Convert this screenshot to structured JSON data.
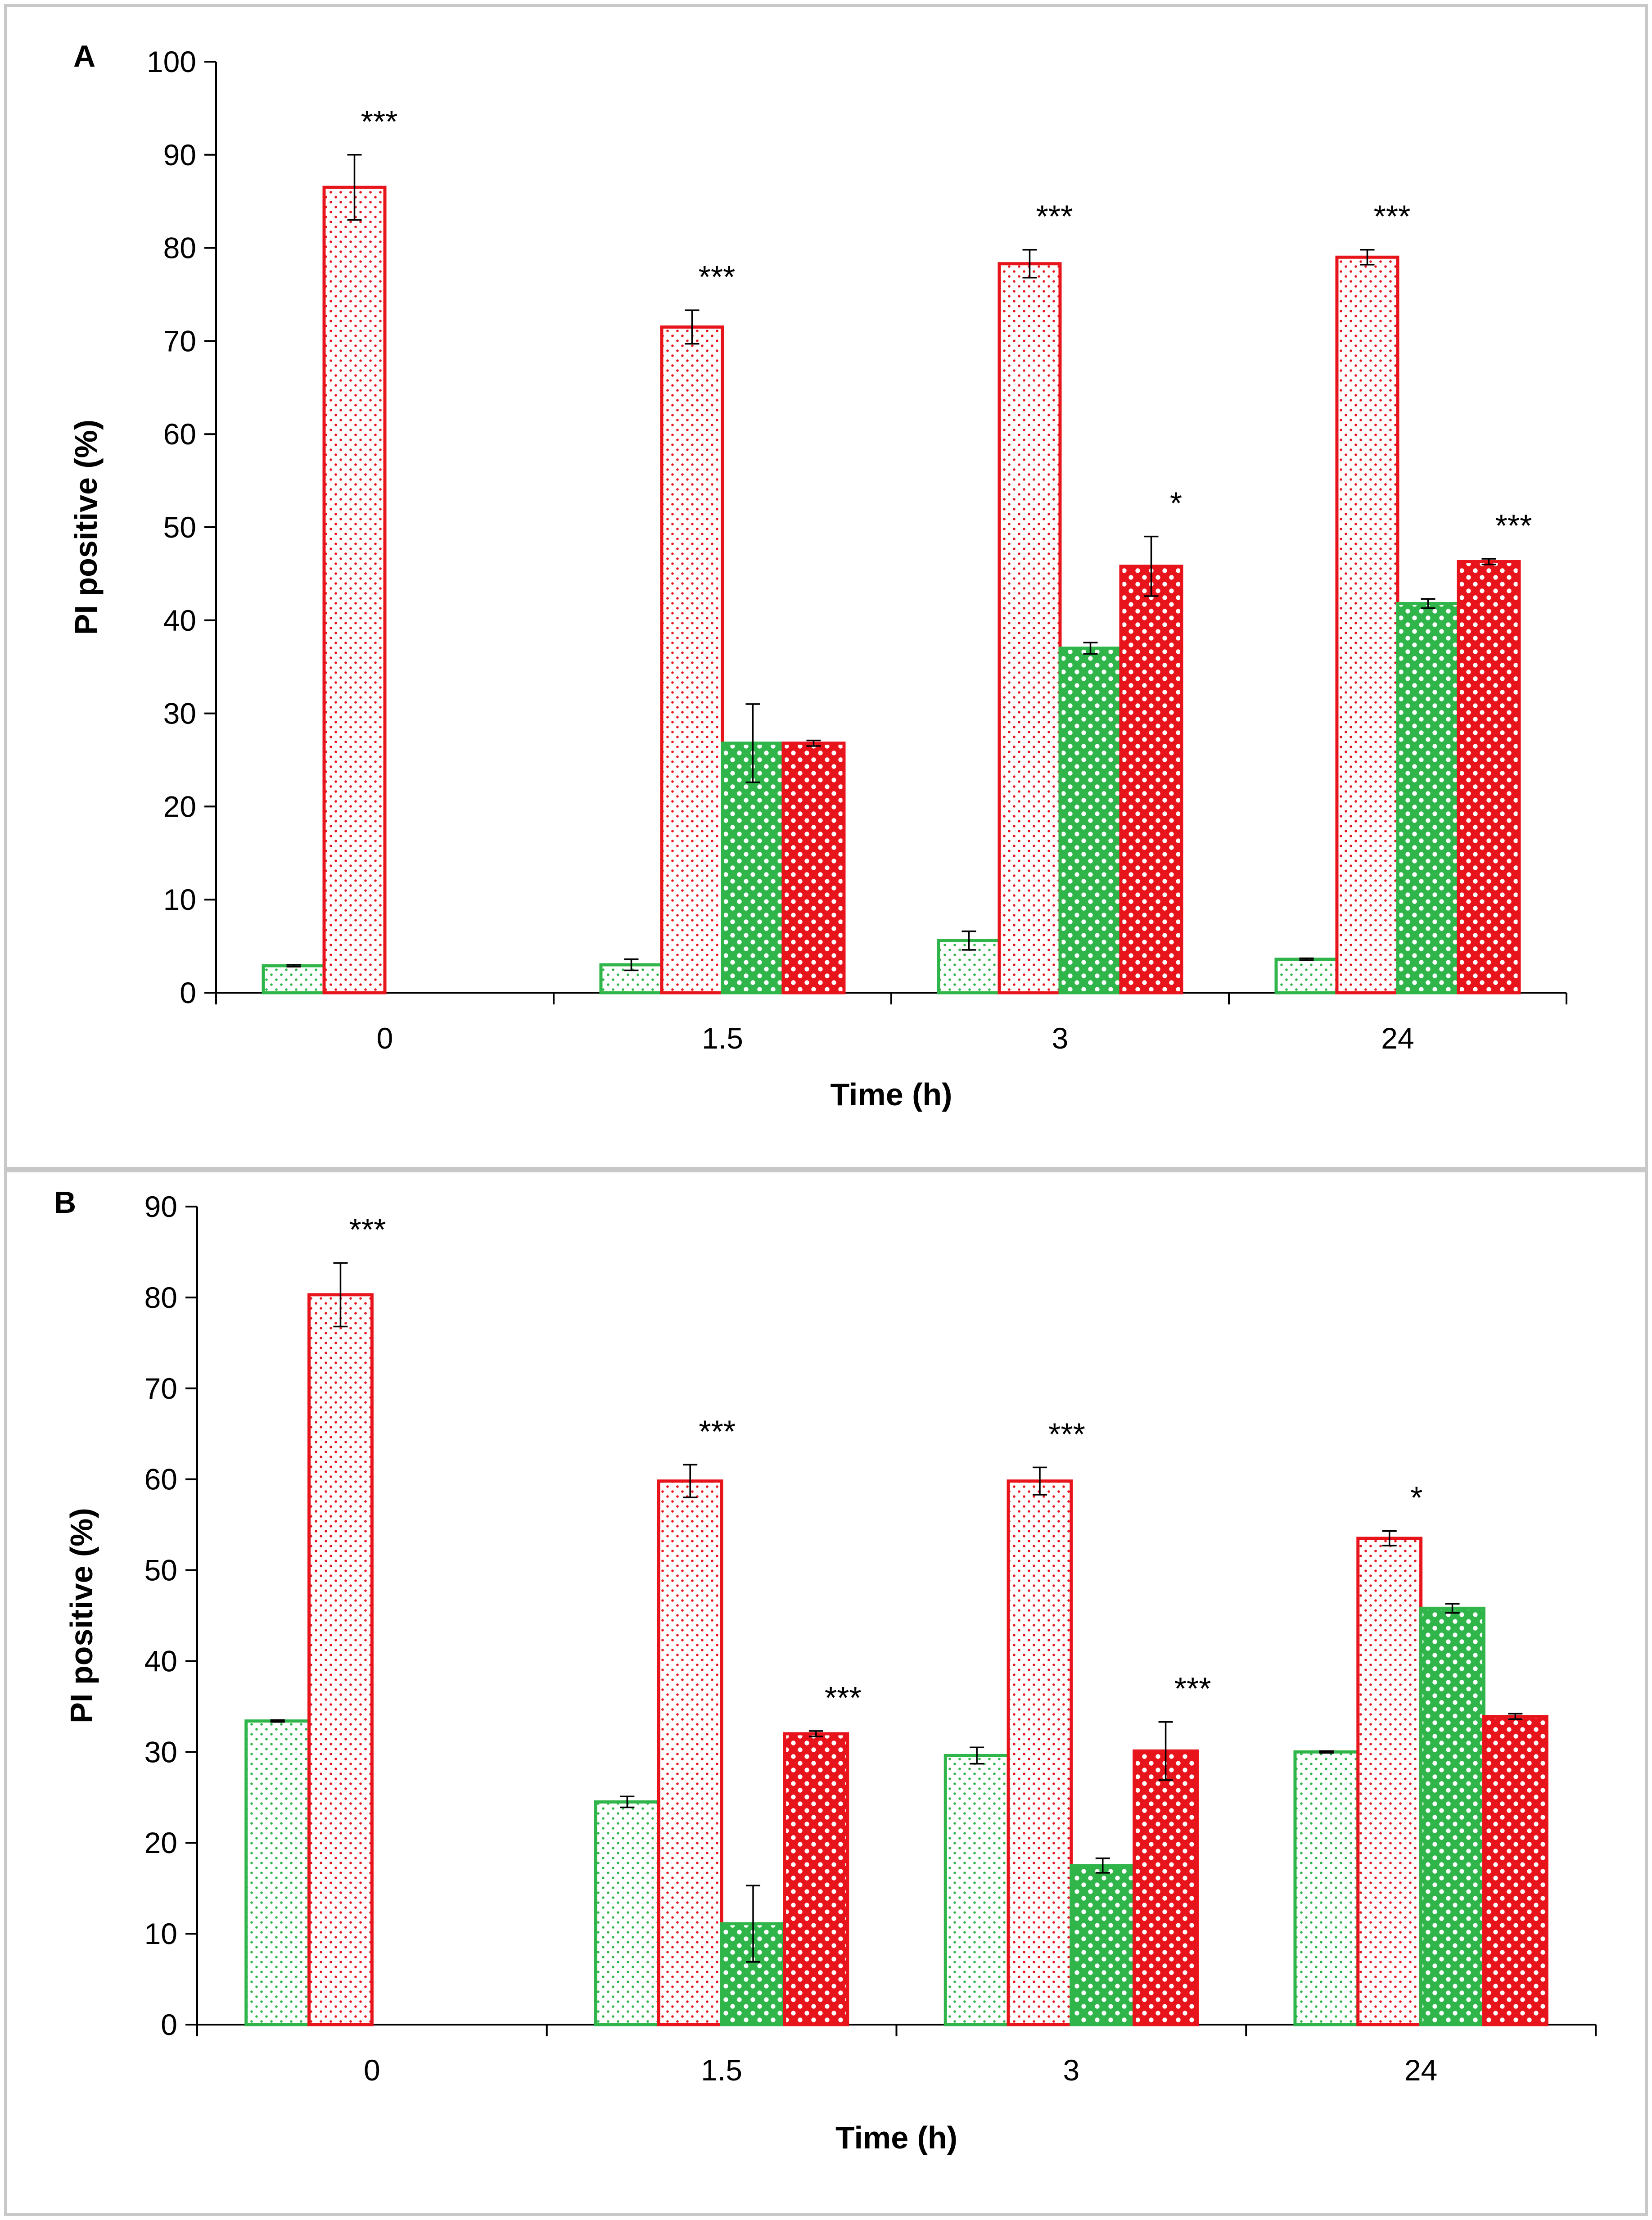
{
  "chart_data": [
    {
      "type": "bar",
      "panel_label": "A",
      "title": "",
      "xlabel": "Time (h)",
      "ylabel": "PI positive (%)",
      "ylim": [
        0,
        100
      ],
      "yticks": [
        0,
        10,
        20,
        30,
        40,
        50,
        60,
        70,
        80,
        90,
        100
      ],
      "categories": [
        "0",
        "1.5",
        "3",
        "24"
      ],
      "legend": "none",
      "grid": false,
      "series": [
        {
          "color": "#2fb54a",
          "pattern": "dots",
          "values": [
            2.9,
            3.0,
            5.6,
            3.6
          ],
          "errors": [
            0.1,
            0.6,
            1.0,
            0.1
          ]
        },
        {
          "color": "#e8141c",
          "pattern": "dots",
          "values": [
            86.5,
            71.5,
            78.3,
            79.0
          ],
          "errors": [
            3.5,
            1.8,
            1.5,
            0.8
          ]
        },
        {
          "color": "#2fb54a",
          "pattern": "checker",
          "values": [
            null,
            26.8,
            37.0,
            41.8
          ],
          "errors": [
            null,
            4.2,
            0.6,
            0.5
          ]
        },
        {
          "color": "#e8141c",
          "pattern": "checker",
          "values": [
            null,
            26.8,
            45.8,
            46.3
          ],
          "errors": [
            null,
            0.3,
            3.2,
            0.3
          ]
        }
      ],
      "significance": [
        {
          "series": 1,
          "category": 0,
          "label": "***"
        },
        {
          "series": 1,
          "category": 1,
          "label": "***"
        },
        {
          "series": 1,
          "category": 2,
          "label": "***"
        },
        {
          "series": 1,
          "category": 3,
          "label": "***"
        },
        {
          "series": 3,
          "category": 2,
          "label": "*"
        },
        {
          "series": 3,
          "category": 3,
          "label": "***"
        }
      ]
    },
    {
      "type": "bar",
      "panel_label": "B",
      "title": "",
      "xlabel": "Time (h)",
      "ylabel": "PI positive (%)",
      "ylim": [
        0,
        90
      ],
      "yticks": [
        0,
        10,
        20,
        30,
        40,
        50,
        60,
        70,
        80,
        90
      ],
      "categories": [
        "0",
        "1.5",
        "3",
        "24"
      ],
      "legend": "none",
      "grid": false,
      "series": [
        {
          "color": "#2fb54a",
          "pattern": "dots",
          "values": [
            33.4,
            24.5,
            29.6,
            30.0
          ],
          "errors": [
            0.1,
            0.6,
            0.9,
            0.1
          ]
        },
        {
          "color": "#e8141c",
          "pattern": "dots",
          "values": [
            80.3,
            59.8,
            59.8,
            53.5
          ],
          "errors": [
            3.5,
            1.8,
            1.5,
            0.8
          ]
        },
        {
          "color": "#2fb54a",
          "pattern": "checker",
          "values": [
            null,
            11.1,
            17.5,
            45.8
          ],
          "errors": [
            null,
            4.2,
            0.8,
            0.5
          ]
        },
        {
          "color": "#e8141c",
          "pattern": "checker",
          "values": [
            null,
            32.0,
            30.1,
            33.9
          ],
          "errors": [
            null,
            0.3,
            3.2,
            0.3
          ]
        }
      ],
      "significance": [
        {
          "series": 1,
          "category": 0,
          "label": "***"
        },
        {
          "series": 1,
          "category": 1,
          "label": "***"
        },
        {
          "series": 1,
          "category": 2,
          "label": "***"
        },
        {
          "series": 1,
          "category": 3,
          "label": "*"
        },
        {
          "series": 3,
          "category": 1,
          "label": "***"
        },
        {
          "series": 3,
          "category": 2,
          "label": "***"
        }
      ]
    }
  ]
}
